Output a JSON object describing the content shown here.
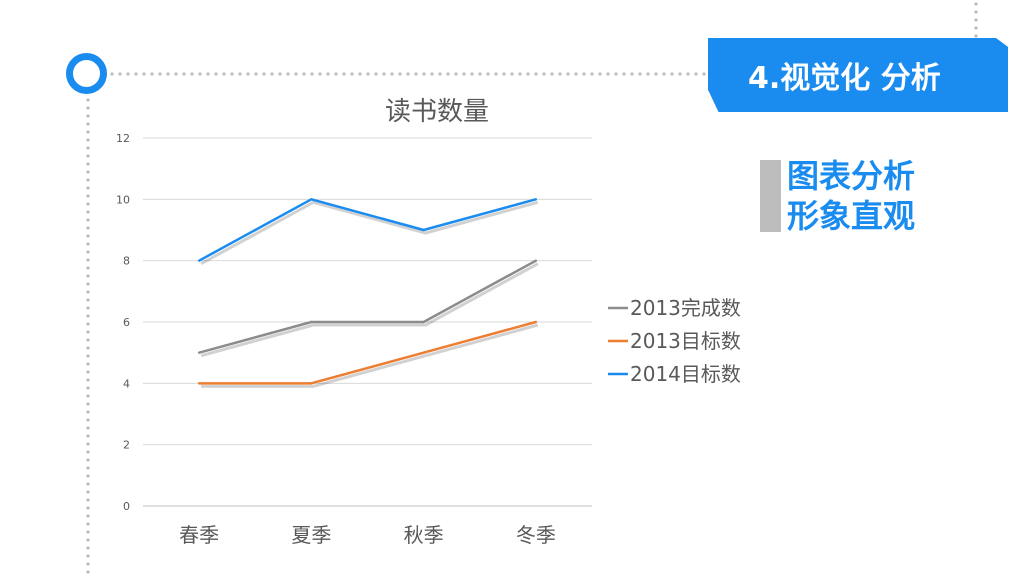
{
  "header": {
    "section_title": "4.视觉化 分析"
  },
  "side": {
    "line1": "图表分析",
    "line2": "形象直观"
  },
  "colors": {
    "accent": "#1a8cf0",
    "gray_series": "#8c8c8c",
    "orange_series": "#ed7d31",
    "blue_series": "#1a8cf0",
    "grid": "#d9d9d9",
    "decor_gray": "#bdbdbd"
  },
  "chart_data": {
    "type": "line",
    "title": "读书数量",
    "categories": [
      "春季",
      "夏季",
      "秋季",
      "冬季"
    ],
    "ylim": [
      0,
      12
    ],
    "yticks": [
      0,
      2,
      4,
      6,
      8,
      10,
      12
    ],
    "grid": true,
    "legend_position": "right",
    "series": [
      {
        "name": "2013完成数",
        "values": [
          5,
          6,
          6,
          8
        ],
        "color": "#8c8c8c"
      },
      {
        "name": "2013目标数",
        "values": [
          4,
          4,
          5,
          6
        ],
        "color": "#ed7d31"
      },
      {
        "name": "2014目标数",
        "values": [
          8,
          10,
          9,
          10
        ],
        "color": "#1a8cf0"
      }
    ]
  }
}
